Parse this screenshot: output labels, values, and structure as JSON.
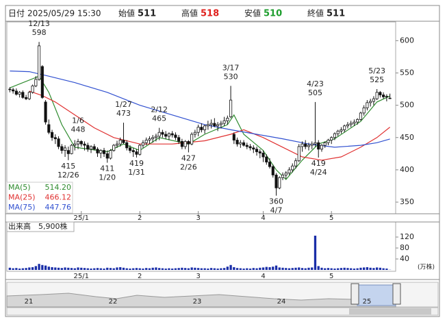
{
  "header": {
    "date_label": "日付",
    "datetime": "2025/05/29 15:30",
    "open_label": "始値",
    "open": 511,
    "high_label": "高値",
    "high": 518,
    "low_label": "安値",
    "low": 510,
    "close_label": "終値",
    "close": 511
  },
  "chart_data": [
    {
      "type": "candlestick",
      "categories": [
        null,
        null,
        null,
        null,
        null,
        null,
        null,
        null,
        null,
        null,
        null,
        null,
        null,
        null,
        null,
        null,
        null,
        null,
        null,
        null,
        null,
        null,
        "25/1",
        null,
        null,
        null,
        null,
        null,
        null,
        null,
        null,
        null,
        null,
        null,
        null,
        null,
        null,
        null,
        null,
        null,
        "2",
        null,
        null,
        null,
        null,
        null,
        null,
        null,
        null,
        null,
        null,
        null,
        null,
        null,
        null,
        null,
        null,
        null,
        "3",
        null,
        null,
        null,
        null,
        null,
        null,
        null,
        null,
        null,
        null,
        null,
        null,
        null,
        null,
        null,
        null,
        null,
        null,
        null,
        "4",
        null,
        null,
        null,
        null,
        null,
        null,
        null,
        null,
        null,
        null,
        null,
        null,
        null,
        null,
        null,
        null,
        null,
        null,
        null,
        null,
        "5",
        null,
        null,
        null,
        null,
        null,
        null,
        null,
        null,
        null,
        null,
        null,
        null,
        null,
        null,
        null,
        null,
        null,
        null
      ],
      "ohlc": [
        [
          525,
          528,
          520,
          524
        ],
        [
          524,
          527,
          518,
          522
        ],
        [
          522,
          526,
          515,
          517
        ],
        [
          517,
          522,
          512,
          520
        ],
        [
          520,
          523,
          510,
          512
        ],
        [
          512,
          516,
          508,
          510
        ],
        [
          510,
          522,
          508,
          520
        ],
        [
          520,
          532,
          518,
          530
        ],
        [
          530,
          545,
          528,
          540
        ],
        [
          540,
          598,
          538,
          592
        ],
        [
          560,
          562,
          510,
          512
        ],
        [
          505,
          508,
          470,
          474
        ],
        [
          470,
          478,
          455,
          458
        ],
        [
          458,
          462,
          445,
          450
        ],
        [
          450,
          455,
          440,
          448
        ],
        [
          448,
          452,
          432,
          436
        ],
        [
          436,
          440,
          425,
          430
        ],
        [
          430,
          438,
          420,
          434
        ],
        [
          430,
          436,
          415,
          425
        ],
        [
          425,
          440,
          424,
          438
        ],
        [
          438,
          446,
          430,
          440
        ],
        [
          440,
          448,
          432,
          444
        ],
        [
          444,
          446,
          436,
          440
        ],
        [
          440,
          444,
          430,
          438
        ],
        [
          438,
          442,
          428,
          432
        ],
        [
          432,
          438,
          426,
          436
        ],
        [
          436,
          440,
          430,
          432
        ],
        [
          432,
          435,
          420,
          426
        ],
        [
          426,
          432,
          418,
          430
        ],
        [
          430,
          434,
          420,
          425
        ],
        [
          425,
          430,
          411,
          418
        ],
        [
          418,
          432,
          416,
          430
        ],
        [
          430,
          440,
          428,
          438
        ],
        [
          438,
          445,
          434,
          440
        ],
        [
          440,
          450,
          436,
          446
        ],
        [
          446,
          473,
          440,
          442
        ],
        [
          442,
          446,
          430,
          434
        ],
        [
          434,
          438,
          426,
          430
        ],
        [
          430,
          434,
          420,
          428
        ],
        [
          428,
          432,
          419,
          424
        ],
        [
          424,
          440,
          422,
          438
        ],
        [
          438,
          446,
          434,
          442
        ],
        [
          442,
          450,
          438,
          446
        ],
        [
          446,
          452,
          440,
          448
        ],
        [
          448,
          454,
          442,
          450
        ],
        [
          450,
          456,
          444,
          452
        ],
        [
          452,
          465,
          446,
          458
        ],
        [
          458,
          462,
          450,
          455
        ],
        [
          455,
          460,
          448,
          452
        ],
        [
          452,
          458,
          446,
          456
        ],
        [
          456,
          460,
          450,
          454
        ],
        [
          454,
          458,
          446,
          450
        ],
        [
          450,
          454,
          440,
          444
        ],
        [
          444,
          448,
          432,
          436
        ],
        [
          436,
          446,
          432,
          444
        ],
        [
          444,
          446,
          427,
          440
        ],
        [
          440,
          458,
          438,
          455
        ],
        [
          455,
          462,
          450,
          458
        ],
        [
          458,
          470,
          452,
          466
        ],
        [
          466,
          472,
          458,
          462
        ],
        [
          462,
          470,
          456,
          468
        ],
        [
          468,
          476,
          462,
          470
        ],
        [
          470,
          478,
          464,
          472
        ],
        [
          472,
          480,
          466,
          468
        ],
        [
          468,
          474,
          460,
          470
        ],
        [
          470,
          476,
          464,
          472
        ],
        [
          472,
          482,
          468,
          476
        ],
        [
          476,
          484,
          470,
          480
        ],
        [
          482,
          530,
          480,
          508
        ],
        [
          455,
          458,
          440,
          446
        ],
        [
          446,
          450,
          436,
          440
        ],
        [
          440,
          446,
          434,
          442
        ],
        [
          442,
          446,
          436,
          438
        ],
        [
          438,
          442,
          432,
          436
        ],
        [
          436,
          440,
          430,
          434
        ],
        [
          434,
          438,
          426,
          432
        ],
        [
          432,
          436,
          422,
          428
        ],
        [
          428,
          432,
          418,
          426
        ],
        [
          426,
          430,
          412,
          420
        ],
        [
          420,
          424,
          408,
          412
        ],
        [
          412,
          418,
          402,
          405
        ],
        [
          405,
          408,
          388,
          392
        ],
        [
          392,
          395,
          360,
          372
        ],
        [
          372,
          390,
          370,
          388
        ],
        [
          388,
          396,
          384,
          392
        ],
        [
          392,
          398,
          386,
          395
        ],
        [
          395,
          404,
          392,
          400
        ],
        [
          400,
          410,
          396,
          406
        ],
        [
          406,
          418,
          402,
          414
        ],
        [
          414,
          440,
          412,
          436
        ],
        [
          436,
          444,
          428,
          440
        ],
        [
          440,
          446,
          432,
          436
        ],
        [
          436,
          442,
          430,
          438
        ],
        [
          438,
          444,
          432,
          440
        ],
        [
          440,
          505,
          436,
          442
        ],
        [
          442,
          446,
          419,
          432
        ],
        [
          432,
          440,
          428,
          438
        ],
        [
          438,
          444,
          434,
          442
        ],
        [
          442,
          448,
          438,
          446
        ],
        [
          446,
          452,
          440,
          450
        ],
        [
          450,
          458,
          446,
          456
        ],
        [
          456,
          462,
          452,
          460
        ],
        [
          460,
          466,
          456,
          462
        ],
        [
          462,
          470,
          458,
          468
        ],
        [
          468,
          474,
          464,
          470
        ],
        [
          470,
          476,
          466,
          472
        ],
        [
          472,
          478,
          468,
          474
        ],
        [
          474,
          480,
          470,
          478
        ],
        [
          478,
          490,
          476,
          488
        ],
        [
          488,
          500,
          484,
          496
        ],
        [
          496,
          508,
          492,
          504
        ],
        [
          504,
          510,
          498,
          506
        ],
        [
          506,
          514,
          500,
          510
        ],
        [
          510,
          525,
          508,
          520
        ],
        [
          520,
          522,
          512,
          516
        ],
        [
          516,
          520,
          510,
          513
        ],
        [
          513,
          517,
          506,
          514
        ],
        [
          511,
          518,
          510,
          511
        ]
      ],
      "ylim": [
        332,
        629
      ],
      "yticks": [
        350,
        400,
        450,
        500,
        550,
        600
      ],
      "series": [
        {
          "name": "MA(5)",
          "color": "#2e8b2e",
          "latest": {
            "value": 514.2,
            "label": "514.20"
          },
          "x": [
            0,
            9,
            12,
            16,
            20,
            30,
            35,
            40,
            46,
            55,
            60,
            67,
            69,
            72,
            78,
            82,
            85,
            90,
            95,
            100,
            108,
            113,
            117
          ],
          "values": [
            527,
            545,
            520,
            470,
            435,
            428,
            440,
            430,
            450,
            440,
            455,
            470,
            485,
            455,
            430,
            400,
            385,
            415,
            440,
            448,
            475,
            505,
            514.2
          ]
        },
        {
          "name": "MA(25)",
          "color": "#e03030",
          "latest": {
            "value": 466.12,
            "label": "466.12"
          },
          "x": [
            6,
            10,
            14,
            20,
            26,
            32,
            40,
            50,
            60,
            68,
            72,
            78,
            84,
            90,
            96,
            102,
            108,
            113,
            117
          ],
          "values": [
            522,
            515,
            505,
            485,
            465,
            450,
            440,
            440,
            445,
            455,
            462,
            450,
            435,
            420,
            415,
            420,
            435,
            450,
            466.12
          ]
        },
        {
          "name": "MA(75)",
          "color": "#3050d0",
          "latest": {
            "value": 447.76,
            "label": "447.76"
          },
          "x": [
            0,
            6,
            12,
            20,
            30,
            40,
            50,
            60,
            68,
            76,
            84,
            92,
            100,
            108,
            113,
            117
          ],
          "values": [
            553,
            552,
            545,
            535,
            520,
            500,
            485,
            470,
            462,
            455,
            448,
            440,
            435,
            438,
            442,
            447.76
          ]
        }
      ],
      "annotations": [
        {
          "date": "12/13",
          "value": 598,
          "position": "above"
        },
        {
          "date": "12/26",
          "value": 415,
          "position": "below"
        },
        {
          "date": "1/6",
          "value": 448,
          "position": "above"
        },
        {
          "date": "1/20",
          "value": 411,
          "position": "below"
        },
        {
          "date": "1/27",
          "value": 473,
          "position": "above"
        },
        {
          "date": "1/31",
          "value": 419,
          "position": "below"
        },
        {
          "date": "2/12",
          "value": 465,
          "position": "above"
        },
        {
          "date": "2/26",
          "value": 427,
          "position": "below"
        },
        {
          "date": "3/17",
          "value": 530,
          "position": "above"
        },
        {
          "date": "4/7",
          "value": 360,
          "position": "below"
        },
        {
          "date": "4/23",
          "value": 505,
          "position": "above"
        },
        {
          "date": "4/24",
          "value": 419,
          "position": "below"
        },
        {
          "date": "5/23",
          "value": 525,
          "position": "above"
        }
      ]
    },
    {
      "type": "bar",
      "title": "出来高",
      "latest_label": "5,900株",
      "unit_label": "(万株)",
      "color": "#1a2ea8",
      "values": [
        8,
        6,
        7,
        5,
        6,
        7,
        9,
        10,
        14,
        22,
        18,
        16,
        12,
        10,
        9,
        8,
        7,
        9,
        8,
        7,
        6,
        9,
        8,
        7,
        6,
        5,
        6,
        7,
        6,
        5,
        8,
        7,
        6,
        9,
        10,
        8,
        6,
        5,
        6,
        7,
        6,
        5,
        7,
        6,
        8,
        9,
        7,
        6,
        5,
        6,
        5,
        6,
        7,
        8,
        7,
        6,
        9,
        8,
        7,
        6,
        6,
        5,
        7,
        6,
        5,
        6,
        7,
        12,
        18,
        10,
        7,
        6,
        5,
        6,
        5,
        7,
        6,
        8,
        9,
        11,
        10,
        12,
        16,
        9,
        8,
        7,
        6,
        7,
        8,
        9,
        7,
        6,
        8,
        9,
        125,
        14,
        8,
        6,
        7,
        6,
        5,
        6,
        7,
        8,
        7,
        6,
        5,
        6,
        8,
        9,
        10,
        8,
        7,
        9,
        8,
        6,
        5,
        0.59
      ],
      "ylim": [
        0,
        150
      ],
      "yticks": [
        40,
        80,
        120
      ]
    }
  ],
  "navigator": {
    "years": [
      "21",
      "22",
      "23",
      "24",
      "25"
    ]
  }
}
